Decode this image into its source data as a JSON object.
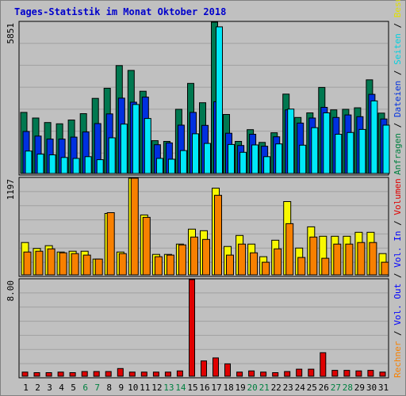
{
  "title": "Tages-Statistik im Monat Oktober 2018",
  "colors": {
    "background": "#c0c0c0",
    "plot": "#c0c0c0",
    "grid": "#a0a0a0",
    "title": "#0000cc",
    "weekday": "#000000",
    "weekend": "#008040",
    "anfragen": "#007850",
    "dateien": "#0030e0",
    "seiten": "#00e8f8",
    "besuche": "#f8f800",
    "rechner": "#f88000",
    "vol_out": "#0000ff",
    "vol_in": "#0000ff",
    "volumen": "#e00000"
  },
  "right_labels": {
    "panel1": [
      {
        "text": "Anfragen",
        "color": "#008040"
      },
      {
        "text": " / ",
        "color": "#000000"
      },
      {
        "text": "Dateien",
        "color": "#0030e0"
      },
      {
        "text": " / ",
        "color": "#000000"
      },
      {
        "text": "Seiten",
        "color": "#00d0e0"
      },
      {
        "text": " / ",
        "color": "#000000"
      },
      {
        "text": "Besuche",
        "color": "#e0e000"
      }
    ],
    "panel2": [
      {
        "text": "Rechner",
        "color": "#f88000"
      },
      {
        "text": " / ",
        "color": "#000000"
      },
      {
        "text": "Vol. Out",
        "color": "#0000ff"
      },
      {
        "text": " / ",
        "color": "#000000"
      },
      {
        "text": "Vol. In",
        "color": "#0000ff"
      },
      {
        "text": " / ",
        "color": "#000000"
      },
      {
        "text": "Volumen",
        "color": "#e00000"
      }
    ]
  },
  "chart_data": {
    "type": "bar",
    "title": "Tages-Statistik im Monat Oktober 2018",
    "categories": [
      "1",
      "2",
      "3",
      "4",
      "5",
      "6",
      "7",
      "8",
      "9",
      "10",
      "11",
      "12",
      "13",
      "14",
      "15",
      "16",
      "17",
      "18",
      "19",
      "20",
      "21",
      "22",
      "23",
      "24",
      "25",
      "26",
      "27",
      "28",
      "29",
      "30",
      "31"
    ],
    "weekend_days": [
      "6",
      "7",
      "13",
      "14",
      "20",
      "21",
      "27",
      "28"
    ],
    "panels": [
      {
        "name": "anfragen_dateien_seiten",
        "ymax_label": "5851",
        "ymax": 5851,
        "series": [
          {
            "name": "Anfragen",
            "values": [
              2400,
              2180,
              2000,
              1950,
              2100,
              2350,
              2950,
              3350,
              4240,
              4050,
              3230,
              1290,
              1260,
              2520,
              3540,
              2780,
              6820,
              2320,
              1260,
              1720,
              1220,
              1600,
              3120,
              2200,
              2380,
              3380,
              2500,
              2520,
              2580,
              3680,
              2370
            ]
          },
          {
            "name": "Dateien",
            "values": [
              1650,
              1470,
              1350,
              1350,
              1430,
              1630,
              1960,
              2340,
              2960,
              2800,
              3000,
              1130,
              1200,
              1900,
              2400,
              1890,
              2820,
              1580,
              1100,
              1540,
              1070,
              1440,
              2500,
              1980,
              2180,
              2600,
              2200,
              2300,
              2230,
              3110,
              2140
            ]
          },
          {
            "name": "Seiten",
            "values": [
              880,
              760,
              730,
              630,
              590,
              660,
              540,
              1400,
              1940,
              2710,
              2160,
              590,
              560,
              900,
              1560,
              1180,
              5760,
              1140,
              830,
              1120,
              660,
              1160,
              2530,
              1110,
              1800,
              2380,
              1540,
              1610,
              1730,
              2850,
              1900
            ]
          }
        ]
      },
      {
        "name": "besuche_rechner",
        "ymax_label": "1197",
        "ymax": 1197,
        "series": [
          {
            "name": "Besuche",
            "values": [
              410,
              335,
              370,
              290,
              300,
              300,
              200,
              780,
              290,
              1290,
              760,
              260,
              260,
              390,
              580,
              560,
              1100,
              360,
              500,
              390,
              230,
              440,
              930,
              340,
              610,
              490,
              490,
              490,
              540,
              540,
              270
            ]
          },
          {
            "name": "Rechner",
            "values": [
              290,
              300,
              330,
              280,
              270,
              250,
              200,
              790,
              270,
              1270,
              730,
              230,
              250,
              380,
              480,
              450,
              1010,
              250,
              390,
              280,
              160,
              330,
              650,
              220,
              480,
              210,
              390,
              390,
              410,
              410,
              160
            ]
          }
        ]
      },
      {
        "name": "volumen",
        "ymax_label": "8.00",
        "ymax": 8.0,
        "series": [
          {
            "name": "Volumen",
            "values": [
              0.35,
              0.3,
              0.3,
              0.35,
              0.3,
              0.4,
              0.4,
              0.4,
              0.65,
              0.35,
              0.35,
              0.35,
              0.35,
              0.45,
              9.8,
              1.3,
              1.55,
              1.05,
              0.35,
              0.45,
              0.35,
              0.3,
              0.4,
              0.6,
              0.6,
              2.0,
              0.5,
              0.5,
              0.45,
              0.5,
              0.35
            ]
          }
        ]
      }
    ]
  }
}
